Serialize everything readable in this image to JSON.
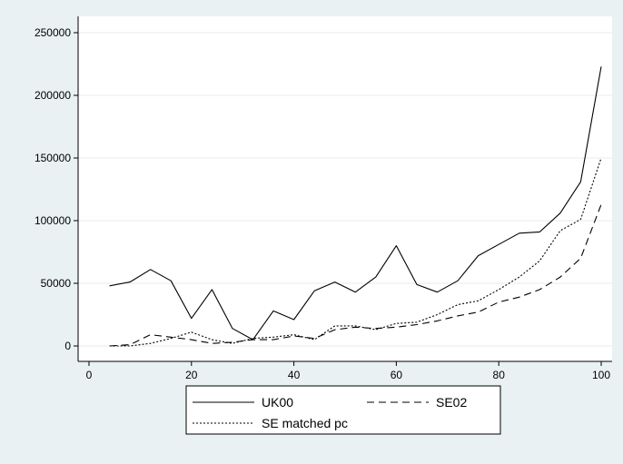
{
  "chart_data": {
    "type": "line",
    "title": "",
    "xlabel": "",
    "ylabel": "",
    "xlim": [
      0,
      100
    ],
    "ylim": [
      0,
      250000
    ],
    "x_ticks": [
      "0",
      "20",
      "40",
      "60",
      "80",
      "100"
    ],
    "y_ticks": [
      "0",
      "50000",
      "100000",
      "150000",
      "200000",
      "250000"
    ],
    "grid": "horizontal",
    "legend_position": "bottom",
    "x": [
      4,
      8,
      12,
      16,
      20,
      24,
      28,
      32,
      36,
      40,
      44,
      48,
      52,
      56,
      60,
      64,
      68,
      72,
      76,
      80,
      84,
      88,
      92,
      96,
      100
    ],
    "series": [
      {
        "name": "UK00",
        "style": "solid",
        "color": "#000000",
        "values": [
          48000,
          51000,
          61000,
          52000,
          22000,
          45000,
          14000,
          5000,
          28000,
          21000,
          44000,
          51000,
          43000,
          55000,
          80000,
          49000,
          43000,
          52000,
          72000,
          81000,
          90000,
          91000,
          106000,
          131000,
          223000
        ]
      },
      {
        "name": "SE02",
        "style": "dashed",
        "color": "#000000",
        "values": [
          0,
          1000,
          9000,
          7000,
          5000,
          2000,
          3000,
          5000,
          5000,
          8000,
          6000,
          13000,
          15000,
          14000,
          15000,
          17000,
          20000,
          24000,
          27000,
          35000,
          39000,
          45000,
          55000,
          70000,
          113000
        ]
      },
      {
        "name": "SE matched pc",
        "style": "dotted",
        "color": "#000000",
        "values": [
          0,
          0,
          2000,
          6000,
          11000,
          5000,
          2000,
          6000,
          7000,
          9000,
          5000,
          16000,
          16000,
          13000,
          18000,
          19000,
          25000,
          33000,
          36000,
          45000,
          55000,
          68000,
          92000,
          101000,
          150000
        ]
      }
    ]
  }
}
